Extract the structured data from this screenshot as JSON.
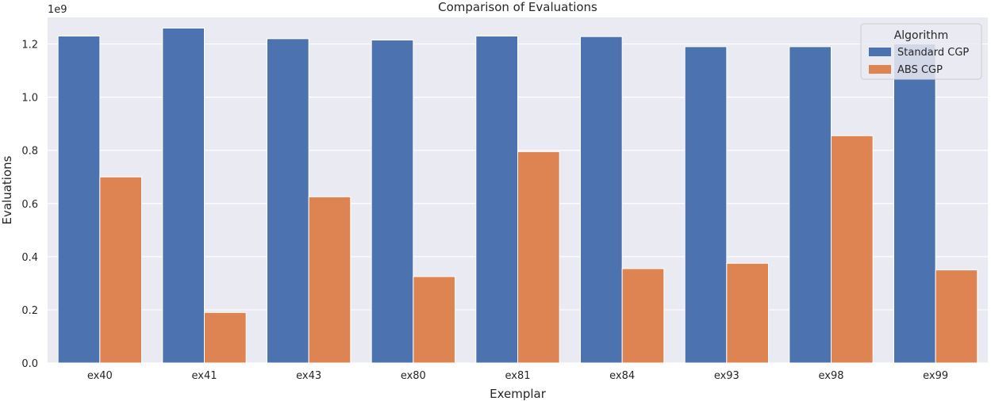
{
  "chart_data": {
    "type": "bar",
    "title": "Comparison of Evaluations",
    "xlabel": "Exemplar",
    "ylabel": "Evaluations",
    "offset_label": "1e9",
    "ylim": [
      0,
      1.3
    ],
    "y_scale_multiplier": 1000000000,
    "yticks": [
      0.0,
      0.2,
      0.4,
      0.6,
      0.8,
      1.0,
      1.2
    ],
    "ytick_labels": [
      "0.0",
      "0.2",
      "0.4",
      "0.6",
      "0.8",
      "1.0",
      "1.2"
    ],
    "grid": true,
    "categories": [
      "ex40",
      "ex41",
      "ex43",
      "ex80",
      "ex81",
      "ex84",
      "ex93",
      "ex98",
      "ex99"
    ],
    "series": [
      {
        "name": "Standard CGP",
        "color": "#4c72b0",
        "values": [
          1.23,
          1.26,
          1.22,
          1.215,
          1.23,
          1.228,
          1.19,
          1.19,
          1.2
        ]
      },
      {
        "name": "ABS CGP",
        "color": "#dd8452",
        "values": [
          0.7,
          0.19,
          0.625,
          0.325,
          0.795,
          0.355,
          0.375,
          0.855,
          0.35
        ]
      }
    ],
    "legend": {
      "title": "Algorithm",
      "placement": "top-right"
    },
    "background_color": "#eaeaf2"
  }
}
